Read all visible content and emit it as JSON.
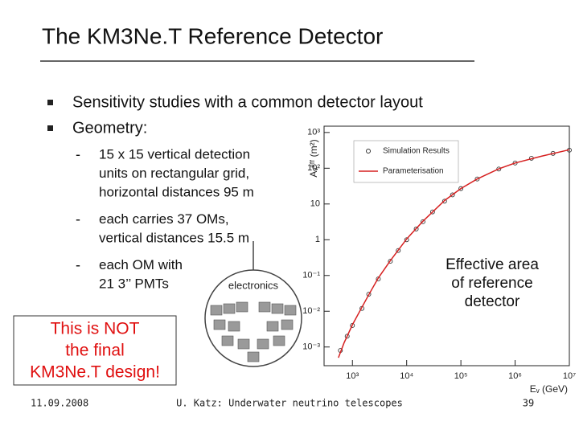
{
  "title": "The KM3Ne.T Reference Detector",
  "bullets": [
    {
      "text": "Sensitivity studies with a common detector layout"
    },
    {
      "text": "Geometry:",
      "subitems": [
        [
          "15 x 15 vertical detection",
          "units on rectangular grid,",
          "horizontal distances 95 m"
        ],
        [
          "each carries 37 OMs,",
          "vertical distances 15.5 m"
        ],
        [
          "each OM with",
          "21 3’’ PMTs"
        ]
      ]
    }
  ],
  "diagram": {
    "label": "electronics"
  },
  "warning": [
    "This is NOT",
    "the final",
    "KM3Ne.T design!"
  ],
  "caption": [
    "Effective area",
    "of reference",
    "detector"
  ],
  "chart": {
    "type": "scatter",
    "x_label": "Eᵥ (GeV)",
    "y_label": "Aᵥᵉᶠᶠ (m²)",
    "log_x": true,
    "log_y": true,
    "xlim": [
      300,
      10000000
    ],
    "ylim": [
      0.0003,
      1500
    ],
    "xticks": [
      {
        "value": 1000,
        "label": "10³"
      },
      {
        "value": 10000,
        "label": "10⁴"
      },
      {
        "value": 100000,
        "label": "10⁵"
      },
      {
        "value": 1000000,
        "label": "10⁶"
      },
      {
        "value": 10000000,
        "label": "10⁷"
      }
    ],
    "yticks": [
      {
        "value": 0.001,
        "label": "10⁻³"
      },
      {
        "value": 0.01,
        "label": "10⁻²"
      },
      {
        "value": 0.1,
        "label": "10⁻¹"
      },
      1,
      10,
      {
        "value": 100,
        "label": "10²"
      },
      {
        "value": 1000,
        "label": "10³"
      }
    ],
    "series": [
      {
        "name": "Simulation Results",
        "marker": "circle",
        "color": "#333333",
        "x": [
          600,
          800,
          1000,
          1500,
          2000,
          3000,
          5000,
          7000,
          10000,
          15000,
          20000,
          30000,
          50000,
          70000,
          100000,
          200000,
          500000,
          1000000,
          2000000,
          5000000,
          10000000
        ],
        "values": [
          0.0008,
          0.002,
          0.004,
          0.012,
          0.03,
          0.08,
          0.25,
          0.5,
          1,
          2,
          3.2,
          6,
          12,
          18,
          27,
          50,
          95,
          140,
          190,
          260,
          320
        ]
      },
      {
        "name": "Parameterisation",
        "marker": "line",
        "color": "#d62020",
        "x": [
          550,
          700,
          1000,
          1500,
          2000,
          3000,
          5000,
          10000,
          20000,
          50000,
          100000,
          200000,
          500000,
          1000000,
          3000000,
          10000000
        ],
        "values": [
          0.0005,
          0.0013,
          0.0042,
          0.013,
          0.029,
          0.085,
          0.26,
          1.05,
          3.3,
          12.5,
          27,
          50,
          96,
          140,
          215,
          330
        ]
      }
    ]
  },
  "footer": {
    "date": "11.09.2008",
    "text": "U. Katz: Underwater neutrino telescopes",
    "page": "39"
  }
}
